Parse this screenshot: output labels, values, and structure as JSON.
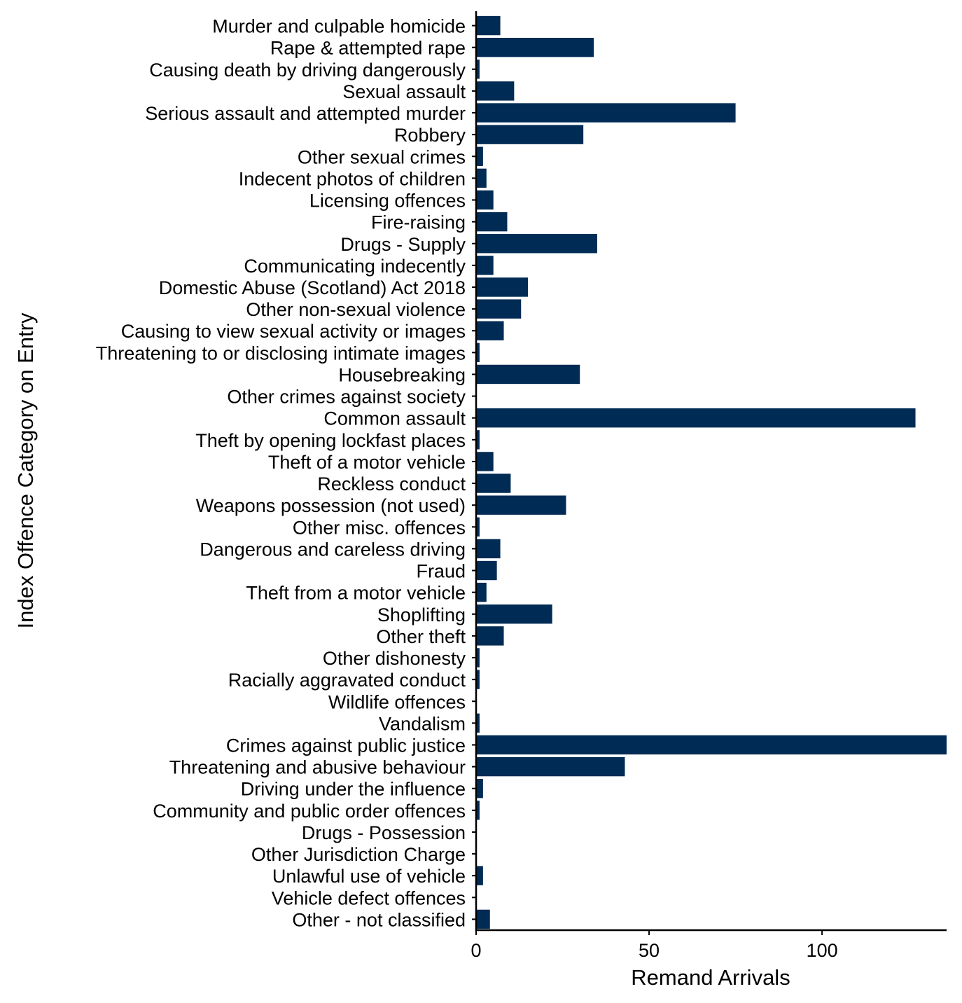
{
  "chart_data": {
    "type": "bar",
    "orientation": "horizontal",
    "xlabel": "Remand Arrivals",
    "ylabel": "Index Offence Category on Entry",
    "xlim": [
      0,
      136
    ],
    "xticks": [
      0,
      50,
      100
    ],
    "grid": false,
    "bar_color": "#002b54",
    "categories": [
      "Murder and culpable homicide",
      "Rape & attempted rape",
      "Causing death by driving dangerously",
      "Sexual assault",
      "Serious assault and attempted murder",
      "Robbery",
      "Other sexual crimes",
      "Indecent photos of children",
      "Licensing offences",
      "Fire-raising",
      "Drugs - Supply",
      "Communicating indecently",
      "Domestic Abuse (Scotland) Act 2018",
      "Other non-sexual violence",
      "Causing to view sexual activity or images",
      "Threatening to or disclosing intimate images",
      "Housebreaking",
      "Other crimes against society",
      "Common assault",
      "Theft by opening lockfast places",
      "Theft of a motor vehicle",
      "Reckless conduct",
      "Weapons possession (not used)",
      "Other misc. offences",
      "Dangerous and careless driving",
      "Fraud",
      "Theft from a motor vehicle",
      "Shoplifting",
      "Other theft",
      "Other dishonesty",
      "Racially aggravated conduct",
      "Wildlife offences",
      "Vandalism",
      "Crimes against public justice",
      "Threatening and abusive behaviour",
      "Driving under the influence",
      "Community and public order offences",
      "Drugs - Possession",
      "Other Jurisdiction Charge",
      "Unlawful use of vehicle",
      "Vehicle defect offences",
      "Other - not classified"
    ],
    "values": [
      7,
      34,
      1,
      11,
      75,
      31,
      2,
      3,
      5,
      9,
      35,
      5,
      15,
      13,
      8,
      1,
      30,
      0,
      127,
      1,
      5,
      10,
      26,
      1,
      7,
      6,
      3,
      22,
      8,
      1,
      1,
      0,
      1,
      136,
      43,
      2,
      1,
      0,
      0,
      2,
      0,
      4
    ]
  }
}
